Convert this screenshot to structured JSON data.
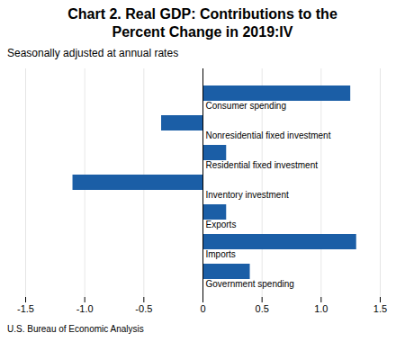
{
  "chart_data": {
    "type": "bar",
    "orientation": "horizontal",
    "title": "Chart 2. Real GDP: Contributions to the\nPercent Change in 2019:IV",
    "subtitle": "Seasonally adjusted at annual rates",
    "caption": "U.S. Bureau of Economic Analysis",
    "categories": [
      "Consumer spending",
      "Nonresidential fixed investment",
      "Residential fixed investment",
      "Inventory investment",
      "Exports",
      "Imports",
      "Government spending"
    ],
    "values": [
      1.25,
      -0.35,
      0.2,
      -1.1,
      0.2,
      1.3,
      0.4
    ],
    "color": "#1b5ea6",
    "xlim": [
      -1.5,
      1.5
    ],
    "xticks": [
      -1.5,
      {
        "value": -1.0,
        "label": "-1.0"
      },
      -0.5,
      0,
      0.5,
      {
        "value": 1.0,
        "label": "1.0"
      },
      1.5
    ],
    "grid": true,
    "tick_labels": "x"
  }
}
